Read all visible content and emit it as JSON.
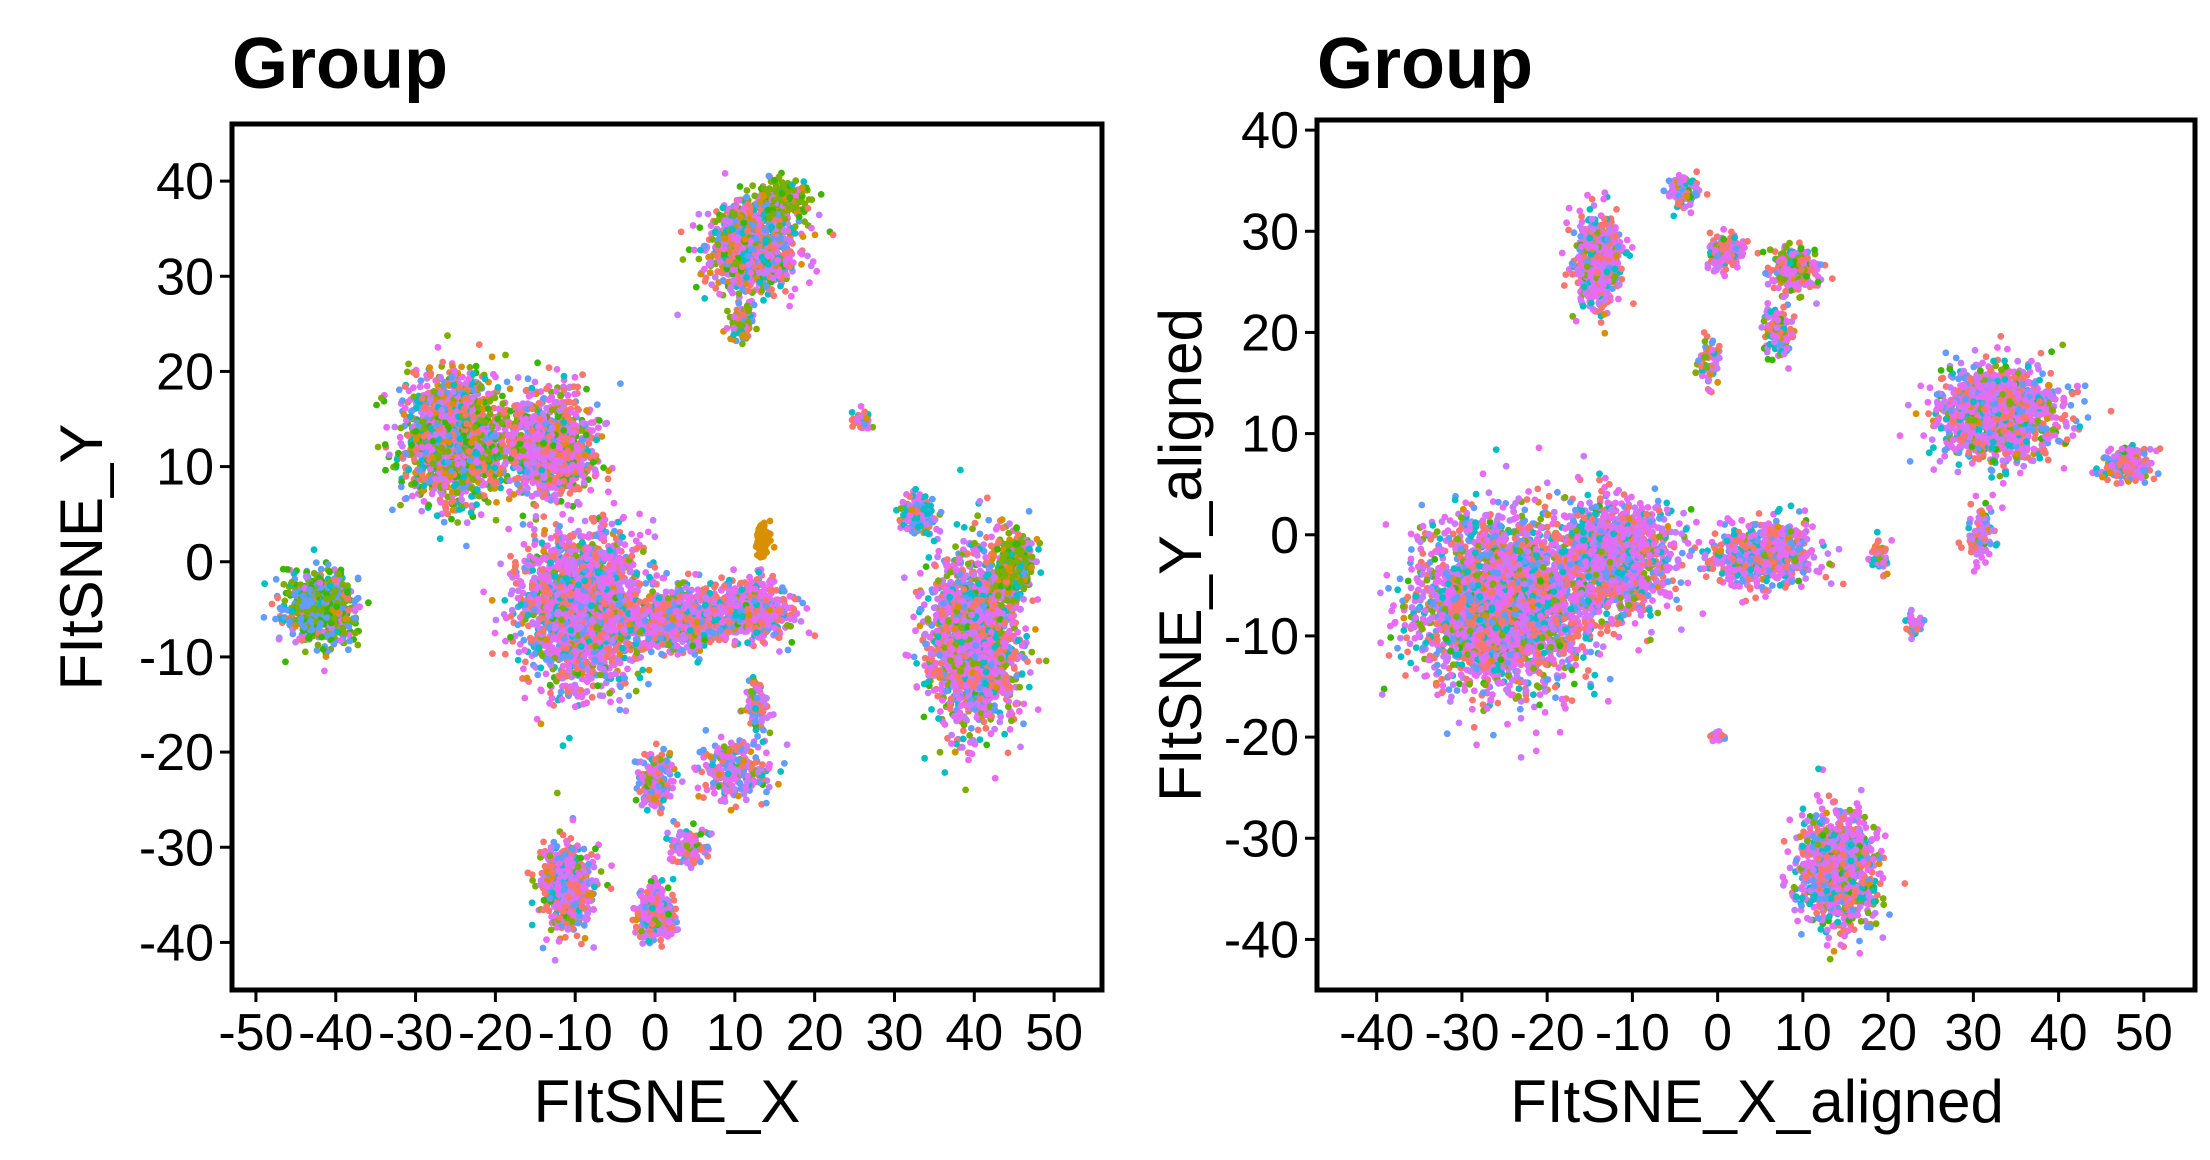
{
  "chart_data": [
    {
      "type": "scatter",
      "title": "Group",
      "xlabel": "FItSNE_X",
      "ylabel": "FItSNE_Y",
      "xlim": [
        -53,
        56
      ],
      "ylim": [
        -45,
        46
      ],
      "x_ticks": [
        -50,
        -40,
        -30,
        -20,
        -10,
        0,
        10,
        20,
        30,
        40,
        50
      ],
      "y_ticks": [
        -40,
        -30,
        -20,
        -10,
        0,
        10,
        20,
        30,
        40
      ],
      "x_tick_labels": [
        "-50",
        "-40",
        "-30",
        "-20",
        "-10",
        "0",
        "10",
        "20",
        "30",
        "40",
        "50"
      ],
      "y_tick_labels": [
        "-40",
        "-30",
        "-20",
        "-10",
        "0",
        "10",
        "20",
        "30",
        "40"
      ],
      "grid": false,
      "legend": "none",
      "palette": [
        "#F8766D",
        "#7CAE00",
        "#00BFC4",
        "#C77CFF",
        "#E76BF3",
        "#619CFF",
        "#D89000",
        "#39B600"
      ],
      "clusters": [
        {
          "cx": -42,
          "cy": -5,
          "sx": 4,
          "sy": 3.5,
          "n": 700,
          "mix": [
            0.05,
            0.25,
            0.05,
            0.05,
            0.05,
            0.3,
            0.05,
            0.2
          ]
        },
        {
          "cx": -25,
          "cy": 13,
          "sx": 6,
          "sy": 6,
          "n": 1600,
          "mix": [
            0.15,
            0.15,
            0.1,
            0.1,
            0.2,
            0.1,
            0.1,
            0.1
          ]
        },
        {
          "cx": -13,
          "cy": 12,
          "sx": 5,
          "sy": 5,
          "n": 900,
          "mix": [
            0.25,
            0.05,
            0.05,
            0.15,
            0.35,
            0.05,
            0.05,
            0.05
          ]
        },
        {
          "cx": -9,
          "cy": -5,
          "sx": 7,
          "sy": 7,
          "n": 2200,
          "mix": [
            0.2,
            0.05,
            0.1,
            0.15,
            0.35,
            0.1,
            0.03,
            0.02
          ]
        },
        {
          "cx": 3,
          "cy": -6,
          "sx": 5,
          "sy": 3,
          "n": 700,
          "mix": [
            0.2,
            0.05,
            0.1,
            0.15,
            0.3,
            0.15,
            0.03,
            0.02
          ]
        },
        {
          "cx": 12,
          "cy": -5,
          "sx": 5,
          "sy": 3,
          "n": 500,
          "mix": [
            0.25,
            0.05,
            0.1,
            0.1,
            0.35,
            0.1,
            0.03,
            0.02
          ]
        },
        {
          "cx": 13.5,
          "cy": 2,
          "sx": 0.8,
          "sy": 1.6,
          "n": 90,
          "mix": [
            0,
            0,
            0,
            0,
            0,
            0,
            1,
            0
          ]
        },
        {
          "cx": 12,
          "cy": 33,
          "sx": 5,
          "sy": 4,
          "n": 1100,
          "mix": [
            0.2,
            0.1,
            0.1,
            0.15,
            0.25,
            0.1,
            0.05,
            0.05
          ]
        },
        {
          "cx": 16,
          "cy": 38,
          "sx": 2.5,
          "sy": 2,
          "n": 250,
          "mix": [
            0.05,
            0.5,
            0.05,
            0.05,
            0.1,
            0.05,
            0.05,
            0.15
          ]
        },
        {
          "cx": 11,
          "cy": 25,
          "sx": 1.5,
          "sy": 1.5,
          "n": 120,
          "mix": [
            0.1,
            0.3,
            0.1,
            0.1,
            0.1,
            0.1,
            0.2,
            0.0
          ]
        },
        {
          "cx": 40,
          "cy": -8,
          "sx": 5,
          "sy": 8,
          "n": 2000,
          "mix": [
            0.2,
            0.1,
            0.1,
            0.15,
            0.3,
            0.1,
            0.03,
            0.02
          ]
        },
        {
          "cx": 45,
          "cy": 0,
          "sx": 2,
          "sy": 3,
          "n": 250,
          "mix": [
            0.05,
            0.45,
            0.05,
            0.05,
            0.1,
            0.05,
            0.1,
            0.15
          ]
        },
        {
          "cx": 33,
          "cy": 5,
          "sx": 2,
          "sy": 2,
          "n": 150,
          "mix": [
            0.1,
            0.05,
            0.2,
            0.1,
            0.3,
            0.2,
            0.05,
            0.0
          ]
        },
        {
          "cx": -11,
          "cy": -34,
          "sx": 3,
          "sy": 4,
          "n": 600,
          "mix": [
            0.25,
            0.05,
            0.1,
            0.15,
            0.3,
            0.1,
            0.03,
            0.02
          ]
        },
        {
          "cx": 0,
          "cy": -37,
          "sx": 2,
          "sy": 2.5,
          "n": 300,
          "mix": [
            0.2,
            0.05,
            0.1,
            0.15,
            0.3,
            0.15,
            0.03,
            0.02
          ]
        },
        {
          "cx": 0,
          "cy": -23,
          "sx": 2,
          "sy": 3,
          "n": 150,
          "mix": [
            0.2,
            0.05,
            0.1,
            0.15,
            0.3,
            0.15,
            0.03,
            0.02
          ]
        },
        {
          "cx": 10,
          "cy": -22,
          "sx": 4,
          "sy": 3,
          "n": 250,
          "mix": [
            0.2,
            0.05,
            0.1,
            0.15,
            0.3,
            0.15,
            0.03,
            0.02
          ]
        },
        {
          "cx": 4,
          "cy": -30,
          "sx": 2,
          "sy": 2,
          "n": 120,
          "mix": [
            0.2,
            0.05,
            0.1,
            0.15,
            0.3,
            0.15,
            0.03,
            0.02
          ]
        },
        {
          "cx": 26,
          "cy": 15,
          "sx": 1,
          "sy": 1,
          "n": 40,
          "mix": [
            0.3,
            0.05,
            0.05,
            0.1,
            0.4,
            0.05,
            0.05,
            0.0
          ]
        },
        {
          "cx": 13,
          "cy": -15,
          "sx": 1.5,
          "sy": 2.5,
          "n": 90,
          "mix": [
            0.2,
            0.05,
            0.1,
            0.15,
            0.3,
            0.15,
            0.03,
            0.02
          ]
        }
      ]
    },
    {
      "type": "scatter",
      "title": "Group",
      "xlabel": "FItSNE_X_aligned",
      "ylabel": "FItSNE_Y_aligned",
      "xlim": [
        -47,
        56
      ],
      "ylim": [
        -45,
        41
      ],
      "x_ticks": [
        -40,
        -30,
        -20,
        -10,
        0,
        10,
        20,
        30,
        40,
        50
      ],
      "y_ticks": [
        -40,
        -30,
        -20,
        -10,
        0,
        10,
        20,
        30,
        40
      ],
      "x_tick_labels": [
        "-40",
        "-30",
        "-20",
        "-10",
        "0",
        "10",
        "20",
        "30",
        "40",
        "50"
      ],
      "y_tick_labels": [
        "-40",
        "-30",
        "-20",
        "-10",
        "0",
        "10",
        "20",
        "30",
        "40"
      ],
      "grid": false,
      "legend": "none",
      "palette": [
        "#F8766D",
        "#7CAE00",
        "#00BFC4",
        "#C77CFF",
        "#E76BF3",
        "#619CFF",
        "#D89000",
        "#39B600"
      ],
      "clusters": [
        {
          "cx": -25,
          "cy": -7,
          "sx": 9,
          "sy": 7.5,
          "n": 3200,
          "mix": [
            0.2,
            0.08,
            0.1,
            0.15,
            0.3,
            0.12,
            0.03,
            0.02
          ]
        },
        {
          "cx": -12,
          "cy": -2,
          "sx": 6,
          "sy": 5,
          "n": 1200,
          "mix": [
            0.2,
            0.05,
            0.1,
            0.15,
            0.35,
            0.12,
            0.02,
            0.01
          ]
        },
        {
          "cx": 5,
          "cy": -2,
          "sx": 6,
          "sy": 3,
          "n": 600,
          "mix": [
            0.2,
            0.05,
            0.1,
            0.15,
            0.35,
            0.12,
            0.02,
            0.01
          ]
        },
        {
          "cx": 19,
          "cy": -2,
          "sx": 1,
          "sy": 1.5,
          "n": 50,
          "mix": [
            0.1,
            0.1,
            0.1,
            0.1,
            0.2,
            0.1,
            0.3,
            0.0
          ]
        },
        {
          "cx": -14,
          "cy": 27,
          "sx": 2.5,
          "sy": 4,
          "n": 600,
          "mix": [
            0.25,
            0.05,
            0.1,
            0.15,
            0.3,
            0.1,
            0.03,
            0.02
          ]
        },
        {
          "cx": -4,
          "cy": 34,
          "sx": 1.5,
          "sy": 1.3,
          "n": 150,
          "mix": [
            0.25,
            0.05,
            0.1,
            0.15,
            0.3,
            0.1,
            0.03,
            0.02
          ]
        },
        {
          "cx": 1,
          "cy": 28,
          "sx": 2,
          "sy": 1.5,
          "n": 150,
          "mix": [
            0.25,
            0.05,
            0.1,
            0.15,
            0.3,
            0.1,
            0.03,
            0.02
          ]
        },
        {
          "cx": 9,
          "cy": 26,
          "sx": 2.5,
          "sy": 2,
          "n": 250,
          "mix": [
            0.2,
            0.15,
            0.1,
            0.1,
            0.25,
            0.1,
            0.05,
            0.05
          ]
        },
        {
          "cx": 7,
          "cy": 20,
          "sx": 1.5,
          "sy": 2.5,
          "n": 120,
          "mix": [
            0.2,
            0.1,
            0.1,
            0.15,
            0.25,
            0.1,
            0.05,
            0.05
          ]
        },
        {
          "cx": -1,
          "cy": 17,
          "sx": 1,
          "sy": 2,
          "n": 80,
          "mix": [
            0.2,
            0.1,
            0.1,
            0.15,
            0.25,
            0.1,
            0.05,
            0.05
          ]
        },
        {
          "cx": 33,
          "cy": 12,
          "sx": 6,
          "sy": 4,
          "n": 1400,
          "mix": [
            0.2,
            0.05,
            0.1,
            0.15,
            0.3,
            0.15,
            0.03,
            0.02
          ]
        },
        {
          "cx": 48,
          "cy": 7,
          "sx": 2.5,
          "sy": 1.5,
          "n": 200,
          "mix": [
            0.2,
            0.05,
            0.1,
            0.15,
            0.3,
            0.15,
            0.03,
            0.02
          ]
        },
        {
          "cx": 31,
          "cy": 0,
          "sx": 1.5,
          "sy": 2.5,
          "n": 100,
          "mix": [
            0.2,
            0.05,
            0.1,
            0.15,
            0.3,
            0.15,
            0.03,
            0.02
          ]
        },
        {
          "cx": 14,
          "cy": -33,
          "sx": 4,
          "sy": 5,
          "n": 1100,
          "mix": [
            0.2,
            0.08,
            0.1,
            0.15,
            0.3,
            0.12,
            0.03,
            0.02
          ]
        },
        {
          "cx": 23,
          "cy": -9,
          "sx": 1,
          "sy": 1,
          "n": 40,
          "mix": [
            0.3,
            0.05,
            0.1,
            0.1,
            0.35,
            0.1,
            0.0,
            0.0
          ]
        },
        {
          "cx": 0,
          "cy": -20,
          "sx": 0.7,
          "sy": 0.5,
          "n": 20,
          "mix": [
            0.3,
            0.05,
            0.1,
            0.1,
            0.35,
            0.1,
            0.0,
            0.0
          ]
        }
      ]
    }
  ]
}
